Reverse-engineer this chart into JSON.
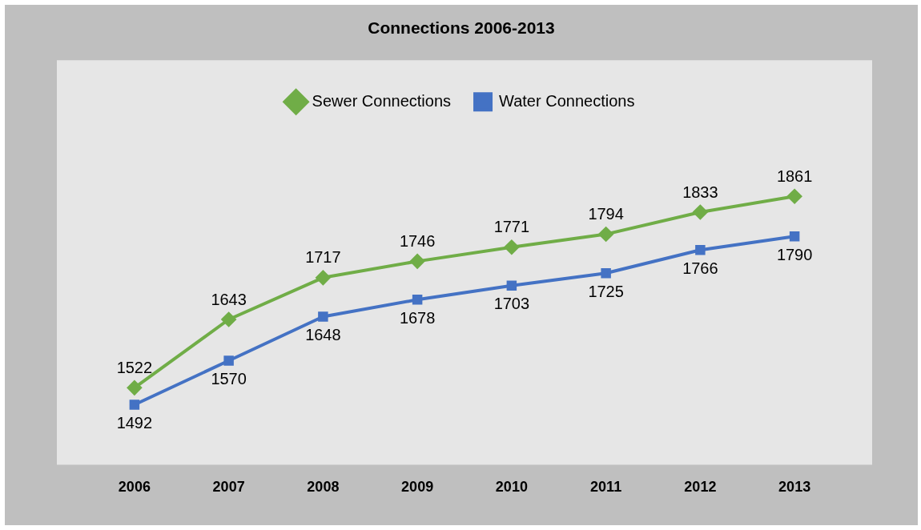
{
  "chart_data": {
    "type": "line",
    "title": "Connections 2006-2013",
    "categories": [
      "2006",
      "2007",
      "2008",
      "2009",
      "2010",
      "2011",
      "2012",
      "2013"
    ],
    "series": [
      {
        "name": "Sewer Connections",
        "color": "#70ad47",
        "marker": "diamond",
        "values": [
          1522,
          1643,
          1717,
          1746,
          1771,
          1794,
          1833,
          1861
        ]
      },
      {
        "name": "Water Connections",
        "color": "#4472c4",
        "marker": "square",
        "values": [
          1492,
          1570,
          1648,
          1678,
          1703,
          1725,
          1766,
          1790
        ]
      }
    ],
    "tick_labels": "x",
    "grid": false,
    "legend": "top",
    "data_labels": true
  }
}
